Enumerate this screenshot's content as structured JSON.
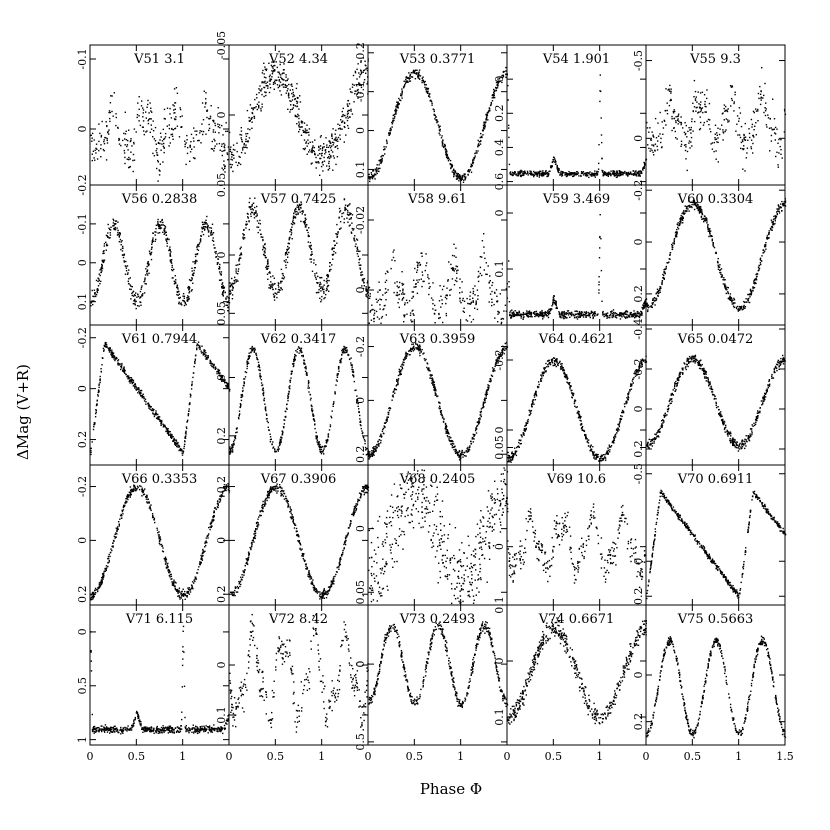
{
  "chart_data": {
    "type": "scatter",
    "xlabel": "Phase Φ",
    "ylabel": "ΔMag (V+R)",
    "xlim": [
      0,
      1.5
    ],
    "x_ticks": [
      "0",
      "0.5",
      "1",
      "1.5"
    ],
    "grid": false,
    "panels": [
      {
        "id": "V51",
        "period": "3.1",
        "yticks": [
          {
            "v": -0.1,
            "t": "-0.1"
          },
          {
            "v": 0,
            "t": "0"
          }
        ],
        "ylim": [
          0.08,
          -0.12
        ],
        "shape": "irreg",
        "amp": 0.035,
        "noise": 0.02,
        "lo": -0.03,
        "hi": 0.04
      },
      {
        "id": "V52",
        "period": "4.34",
        "yticks": [
          {
            "v": -0.05,
            "t": "-0.05"
          },
          {
            "v": 0,
            "t": "0"
          },
          {
            "v": 0.05,
            "t": "0.05"
          }
        ],
        "ylim": [
          0.05,
          -0.05
        ],
        "shape": "sin",
        "amp": 0.02,
        "noise": 0.008,
        "lo": -0.03,
        "hi": 0.03
      },
      {
        "id": "V53",
        "period": "0.3771",
        "yticks": [
          {
            "v": -0.2,
            "t": "-0.2"
          },
          {
            "v": -0.1,
            "t": "-0.1"
          },
          {
            "v": 0,
            "t": "0"
          },
          {
            "v": 0.1,
            "t": "0.1"
          }
        ],
        "ylim": [
          0.14,
          -0.22
        ],
        "shape": "sin",
        "amp": 0.12,
        "noise": 0.008,
        "lo": -0.15,
        "hi": 0.12
      },
      {
        "id": "V54",
        "period": "1.901",
        "yticks": [
          {
            "v": 0,
            "t": "0"
          },
          {
            "v": 0.2,
            "t": "0.2"
          },
          {
            "v": 0.4,
            "t": "0.4"
          },
          {
            "v": 0.6,
            "t": "0.6"
          }
        ],
        "ylim": [
          0.62,
          -0.2
        ],
        "shape": "ecl",
        "amp": 0.5,
        "noise": 0.01,
        "lo": -0.05,
        "hi": 0.55
      },
      {
        "id": "V55",
        "period": "9.3",
        "yticks": [
          {
            "v": -0.5,
            "t": "-0.5"
          },
          {
            "v": 0,
            "t": "0"
          }
        ],
        "ylim": [
          0.3,
          -0.6
        ],
        "shape": "irreg",
        "amp": 0.15,
        "noise": 0.08,
        "lo": -0.3,
        "hi": 0.1
      },
      {
        "id": "V56",
        "period": "0.2838",
        "yticks": [
          {
            "v": -0.2,
            "t": "-0.2"
          },
          {
            "v": -0.1,
            "t": "-0.1"
          },
          {
            "v": 0,
            "t": "0"
          },
          {
            "v": 0.1,
            "t": "0.1"
          }
        ],
        "ylim": [
          0.16,
          -0.2
        ],
        "shape": "sin3",
        "amp": 0.09,
        "noise": 0.015,
        "lo": -0.1,
        "hi": 0.1
      },
      {
        "id": "V57",
        "period": "0.7425",
        "yticks": [
          {
            "v": 0,
            "t": "0"
          },
          {
            "v": 0.05,
            "t": "0.05"
          }
        ],
        "ylim": [
          0.06,
          -0.06
        ],
        "shape": "sin3",
        "amp": 0.03,
        "noise": 0.006,
        "lo": -0.04,
        "hi": 0.03
      },
      {
        "id": "V58",
        "period": "9.61",
        "yticks": [
          {
            "v": -0.02,
            "t": "-0.02"
          },
          {
            "v": 0,
            "t": "0"
          }
        ],
        "ylim": [
          0.01,
          -0.03
        ],
        "shape": "irreg",
        "amp": 0.005,
        "noise": 0.004,
        "lo": -0.01,
        "hi": 0.01
      },
      {
        "id": "V59",
        "period": "3.469",
        "yticks": [
          {
            "v": 0,
            "t": "0"
          },
          {
            "v": 0.1,
            "t": "0.1"
          }
        ],
        "ylim": [
          0.2,
          -0.05
        ],
        "shape": "ecl",
        "amp": 0.17,
        "noise": 0.004,
        "lo": -0.01,
        "hi": 0.18
      },
      {
        "id": "V60",
        "period": "0.3304",
        "yticks": [
          {
            "v": -0.2,
            "t": "-0.2"
          },
          {
            "v": 0,
            "t": "0"
          },
          {
            "v": 0.2,
            "t": "0.2"
          }
        ],
        "ylim": [
          0.32,
          -0.22
        ],
        "shape": "sin",
        "amp": 0.19,
        "noise": 0.012,
        "lo": -0.15,
        "hi": 0.25
      },
      {
        "id": "V61",
        "period": "0.7944",
        "yticks": [
          {
            "v": -0.2,
            "t": "-0.2"
          },
          {
            "v": 0,
            "t": "0"
          },
          {
            "v": 0.2,
            "t": "0.2"
          }
        ],
        "ylim": [
          0.3,
          -0.25
        ],
        "shape": "rrab",
        "amp": 0.25,
        "noise": 0.008,
        "lo": -0.18,
        "hi": 0.25
      },
      {
        "id": "V62",
        "period": "0.3417",
        "yticks": [
          {
            "v": 0,
            "t": "0"
          },
          {
            "v": 0.2,
            "t": "0.2"
          }
        ],
        "ylim": [
          0.3,
          -0.18
        ],
        "shape": "sin3",
        "amp": 0.18,
        "noise": 0.01,
        "lo": -0.1,
        "hi": 0.25
      },
      {
        "id": "V63",
        "period": "0.3959",
        "yticks": [
          {
            "v": -0.2,
            "t": "-0.2"
          },
          {
            "v": 0,
            "t": "0"
          },
          {
            "v": 0.2,
            "t": "0.2"
          }
        ],
        "ylim": [
          0.24,
          -0.28
        ],
        "shape": "sin",
        "amp": 0.2,
        "noise": 0.01,
        "lo": -0.2,
        "hi": 0.2
      },
      {
        "id": "V64",
        "period": "0.4621",
        "yticks": [
          {
            "v": -0.2,
            "t": "-0.2"
          },
          {
            "v": 0,
            "t": "0"
          },
          {
            "v": 0.05,
            "t": "0.05"
          }
        ],
        "ylim": [
          0.1,
          -0.3
        ],
        "shape": "sin",
        "amp": 0.15,
        "noise": 0.008,
        "lo": -0.2,
        "hi": 0.08
      },
      {
        "id": "V65",
        "period": "0.0472",
        "yticks": [
          {
            "v": -0.4,
            "t": "-0.4"
          },
          {
            "v": -0.2,
            "t": "-0.2"
          },
          {
            "v": 0,
            "t": "0"
          },
          {
            "v": 0.2,
            "t": "0.2"
          }
        ],
        "ylim": [
          0.28,
          -0.42
        ],
        "shape": "sin",
        "amp": 0.2,
        "noise": 0.015,
        "lo": -0.25,
        "hi": 0.18
      },
      {
        "id": "V66",
        "period": "0.3353",
        "yticks": [
          {
            "v": -0.2,
            "t": "-0.2"
          },
          {
            "v": 0,
            "t": "0"
          },
          {
            "v": 0.2,
            "t": "0.2"
          }
        ],
        "ylim": [
          0.24,
          -0.28
        ],
        "shape": "sin",
        "amp": 0.2,
        "noise": 0.01,
        "lo": -0.2,
        "hi": 0.2
      },
      {
        "id": "V67",
        "period": "0.3906",
        "yticks": [
          {
            "v": -0.2,
            "t": "-0.2"
          },
          {
            "v": 0,
            "t": "0"
          },
          {
            "v": 0.2,
            "t": "0.2"
          }
        ],
        "ylim": [
          0.24,
          -0.28
        ],
        "shape": "sin",
        "amp": 0.19,
        "noise": 0.01,
        "lo": -0.2,
        "hi": 0.2
      },
      {
        "id": "V68",
        "period": "0.2405",
        "yticks": [
          {
            "v": 0,
            "t": "0"
          },
          {
            "v": 0.05,
            "t": "0.05"
          }
        ],
        "ylim": [
          0.06,
          -0.05
        ],
        "shape": "sin",
        "amp": 0.012,
        "noise": 0.02,
        "lo": -0.03,
        "hi": 0.04
      },
      {
        "id": "V69",
        "period": "10.6",
        "yticks": [
          {
            "v": 0,
            "t": "0"
          },
          {
            "v": 0.1,
            "t": "0.1"
          }
        ],
        "ylim": [
          0.1,
          -0.14
        ],
        "shape": "irreg",
        "amp": 0.02,
        "noise": 0.015,
        "lo": -0.06,
        "hi": 0.05
      },
      {
        "id": "V70",
        "period": "0.6911",
        "yticks": [
          {
            "v": -0.5,
            "t": "-0.5"
          },
          {
            "v": 0,
            "t": "0"
          },
          {
            "v": 0.2,
            "t": "0.2"
          }
        ],
        "ylim": [
          0.25,
          -0.55
        ],
        "shape": "rrab",
        "amp": 0.4,
        "noise": 0.01,
        "lo": -0.4,
        "hi": 0.2
      },
      {
        "id": "V71",
        "period": "6.115",
        "yticks": [
          {
            "v": 0,
            "t": "0"
          },
          {
            "v": 0.5,
            "t": "0.5"
          },
          {
            "v": 1,
            "t": "1"
          }
        ],
        "ylim": [
          1.05,
          -0.25
        ],
        "shape": "ecl",
        "amp": 0.85,
        "noise": 0.02,
        "lo": -0.1,
        "hi": 0.9
      },
      {
        "id": "V72",
        "period": "8.42",
        "yticks": [
          {
            "v": 0,
            "t": "0"
          },
          {
            "v": 0.1,
            "t": "0.1"
          }
        ],
        "ylim": [
          0.16,
          -0.12
        ],
        "shape": "irreg",
        "amp": 0.03,
        "noise": 0.02,
        "lo": -0.08,
        "hi": 0.12
      },
      {
        "id": "V73",
        "period": "0.2493",
        "yticks": [
          {
            "v": 0,
            "t": "0"
          },
          {
            "v": 0.5,
            "t": "0.5"
          }
        ],
        "ylim": [
          0.52,
          -0.38
        ],
        "shape": "sin3",
        "amp": 0.2,
        "noise": 0.02,
        "lo": -0.25,
        "hi": 0.25
      },
      {
        "id": "V74",
        "period": "0.6671",
        "yticks": [
          {
            "v": 0,
            "t": "0"
          },
          {
            "v": 0.1,
            "t": "0.1"
          }
        ],
        "ylim": [
          0.15,
          -0.1
        ],
        "shape": "sin",
        "amp": 0.07,
        "noise": 0.01,
        "lo": -0.06,
        "hi": 0.1
      },
      {
        "id": "V75",
        "period": "0.5663",
        "yticks": [
          {
            "v": 0,
            "t": "0"
          },
          {
            "v": 0.2,
            "t": "0.2"
          }
        ],
        "ylim": [
          0.3,
          -0.3
        ],
        "shape": "sin3",
        "amp": 0.2,
        "noise": 0.01,
        "lo": -0.15,
        "hi": 0.25
      }
    ]
  }
}
